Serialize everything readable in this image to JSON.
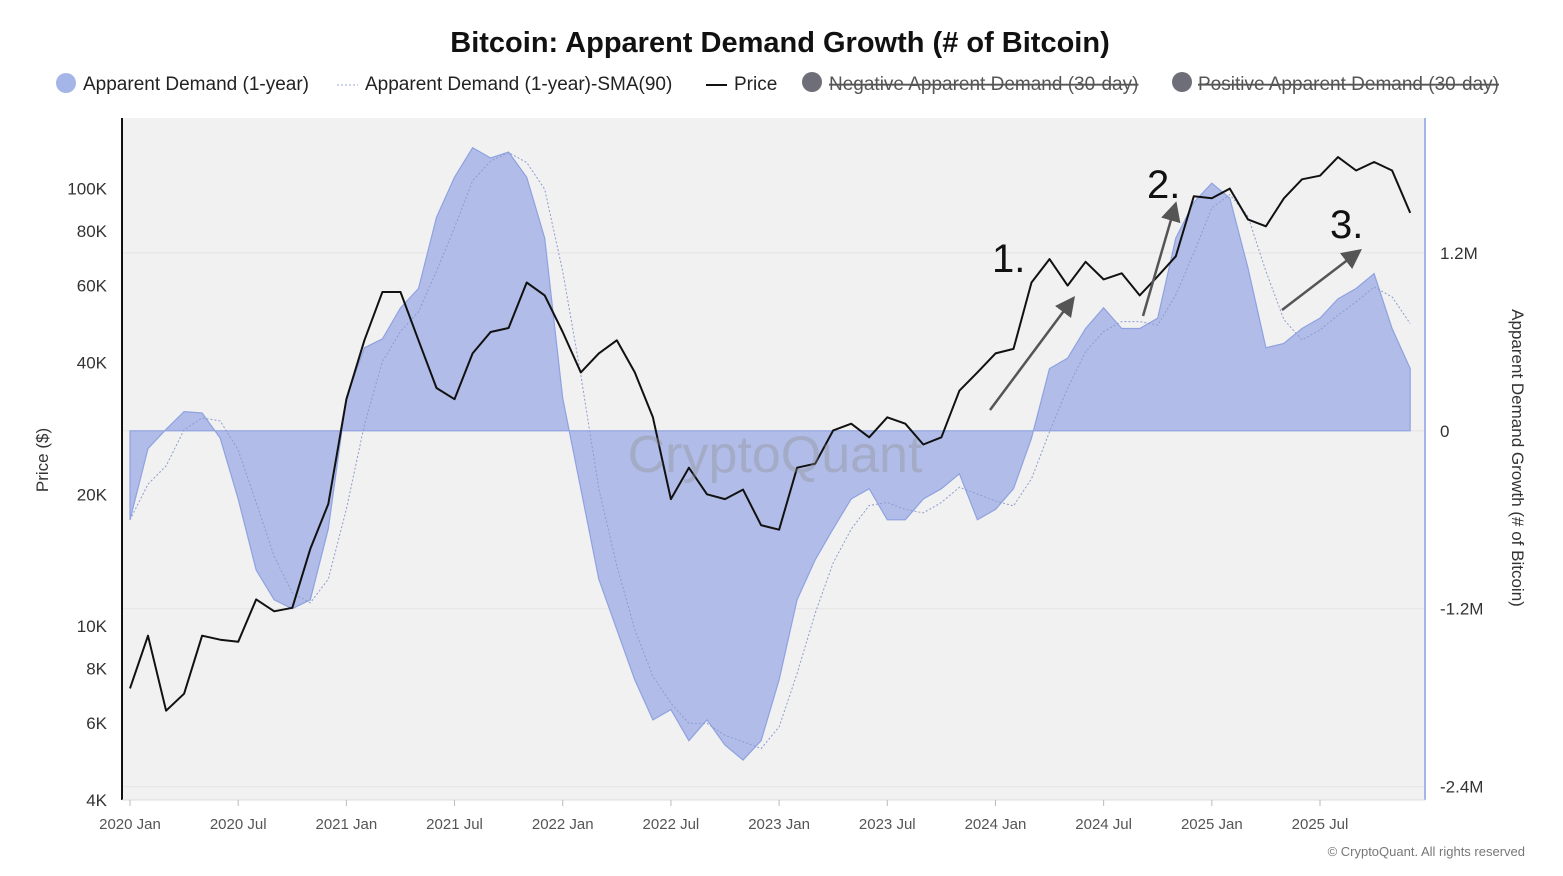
{
  "chart_data": {
    "type": "area",
    "title": "Bitcoin: Apparent Demand Growth (# of Bitcoin)",
    "legend": {
      "placement": "top",
      "items": [
        {
          "label": "Apparent Demand (1-year)",
          "marker": "dot",
          "color": "#a6b5e8",
          "hidden": false
        },
        {
          "label": "Apparent Demand (1-year)-SMA(90)",
          "marker": "dotted-line",
          "color": "#9aa9d8",
          "hidden": false
        },
        {
          "label": "Price",
          "marker": "line",
          "color": "#111111",
          "hidden": false
        },
        {
          "label": "Negative Apparent Demand (30-day)",
          "marker": "dot",
          "color": "#6e6e78",
          "hidden": true
        },
        {
          "label": "Positive Apparent Demand (30-day)",
          "marker": "dot",
          "color": "#6e6e78",
          "hidden": true
        }
      ]
    },
    "ylabel_left": "Price ($)",
    "ylabel_right": "Apparent Demand Growth (# of Bitcoin)",
    "y_left_scale": "log",
    "y_left_range": [
      4000,
      145000
    ],
    "y_left_ticks": [
      {
        "v": 4000,
        "label": "4K"
      },
      {
        "v": 6000,
        "label": "6K"
      },
      {
        "v": 8000,
        "label": "8K"
      },
      {
        "v": 10000,
        "label": "10K"
      },
      {
        "v": 20000,
        "label": "20K"
      },
      {
        "v": 40000,
        "label": "40K"
      },
      {
        "v": 60000,
        "label": "60K"
      },
      {
        "v": 80000,
        "label": "80K"
      },
      {
        "v": 100000,
        "label": "100K"
      }
    ],
    "y_right_range": [
      -2490000,
      2110000
    ],
    "y_right_ticks": [
      {
        "v": 1200000,
        "label": "1.2M"
      },
      {
        "v": 0,
        "label": "0"
      },
      {
        "v": -1200000,
        "label": "-1.2M"
      },
      {
        "v": -2400000,
        "label": "-2.4M"
      }
    ],
    "x_ticks": [
      {
        "v": "2020-01",
        "label": "2020 Jan"
      },
      {
        "v": "2020-07",
        "label": "2020 Jul"
      },
      {
        "v": "2021-01",
        "label": "2021 Jan"
      },
      {
        "v": "2021-07",
        "label": "2021 Jul"
      },
      {
        "v": "2022-01",
        "label": "2022 Jan"
      },
      {
        "v": "2022-07",
        "label": "2022 Jul"
      },
      {
        "v": "2023-01",
        "label": "2023 Jan"
      },
      {
        "v": "2023-07",
        "label": "2023 Jul"
      },
      {
        "v": "2024-01",
        "label": "2024 Jan"
      },
      {
        "v": "2024-07",
        "label": "2024 Jul"
      },
      {
        "v": "2025-01",
        "label": "2025 Jan"
      },
      {
        "v": "2025-07",
        "label": "2025 Jul"
      }
    ],
    "grid": true,
    "x": [
      "2020-01",
      "2020-02",
      "2020-03",
      "2020-04",
      "2020-05",
      "2020-06",
      "2020-07",
      "2020-08",
      "2020-09",
      "2020-10",
      "2020-11",
      "2020-12",
      "2021-01",
      "2021-02",
      "2021-03",
      "2021-04",
      "2021-05",
      "2021-06",
      "2021-07",
      "2021-08",
      "2021-09",
      "2021-10",
      "2021-11",
      "2021-12",
      "2022-01",
      "2022-02",
      "2022-03",
      "2022-04",
      "2022-05",
      "2022-06",
      "2022-07",
      "2022-08",
      "2022-09",
      "2022-10",
      "2022-11",
      "2022-12",
      "2023-01",
      "2023-02",
      "2023-03",
      "2023-04",
      "2023-05",
      "2023-06",
      "2023-07",
      "2023-08",
      "2023-09",
      "2023-10",
      "2023-11",
      "2023-12",
      "2024-01",
      "2024-02",
      "2024-03",
      "2024-04",
      "2024-05",
      "2024-06",
      "2024-07",
      "2024-08",
      "2024-09",
      "2024-10",
      "2024-11",
      "2024-12",
      "2025-01",
      "2025-02",
      "2025-03",
      "2025-04",
      "2025-05",
      "2025-06",
      "2025-07",
      "2025-08",
      "2025-09",
      "2025-10",
      "2025-11",
      "2025-12"
    ],
    "series": [
      {
        "name": "Apparent Demand (1-year)",
        "axis": "right",
        "values": [
          -600000,
          -120000,
          10000,
          130000,
          120000,
          -50000,
          -460000,
          -940000,
          -1140000,
          -1200000,
          -1140000,
          -660000,
          220000,
          560000,
          620000,
          830000,
          960000,
          1440000,
          1710000,
          1910000,
          1840000,
          1880000,
          1710000,
          1300000,
          220000,
          -390000,
          -1000000,
          -1340000,
          -1680000,
          -1950000,
          -1880000,
          -2090000,
          -1950000,
          -2120000,
          -2220000,
          -2090000,
          -1680000,
          -1140000,
          -870000,
          -660000,
          -460000,
          -390000,
          -600000,
          -600000,
          -460000,
          -390000,
          -290000,
          -600000,
          -530000,
          -390000,
          -50000,
          420000,
          490000,
          690000,
          830000,
          690000,
          690000,
          760000,
          1300000,
          1540000,
          1670000,
          1570000,
          1100000,
          560000,
          590000,
          690000,
          760000,
          890000,
          960000,
          1060000,
          690000,
          420000
        ]
      },
      {
        "name": "Price",
        "axis": "left",
        "values": [
          7200,
          9500,
          6400,
          7000,
          9500,
          9300,
          9200,
          11500,
          10800,
          11000,
          15000,
          19000,
          33000,
          45000,
          58000,
          58000,
          45000,
          35000,
          33000,
          42000,
          47000,
          48000,
          61000,
          57000,
          47000,
          38000,
          42000,
          45000,
          38000,
          30000,
          19500,
          23000,
          20000,
          19500,
          20500,
          17000,
          16600,
          23000,
          23500,
          28000,
          29000,
          27000,
          30000,
          29000,
          26000,
          27000,
          34500,
          38000,
          42000,
          43000,
          61000,
          69000,
          60000,
          68000,
          62000,
          64000,
          57000,
          63000,
          70000,
          96000,
          95000,
          100000,
          85000,
          82000,
          95000,
          105000,
          107000,
          118000,
          110000,
          115000,
          110000,
          88000
        ]
      }
    ],
    "annotations": [
      "1.",
      "2.",
      "3."
    ]
  },
  "watermark": "CryptoQuant",
  "copyright": "© CryptoQuant. All rights reserved"
}
